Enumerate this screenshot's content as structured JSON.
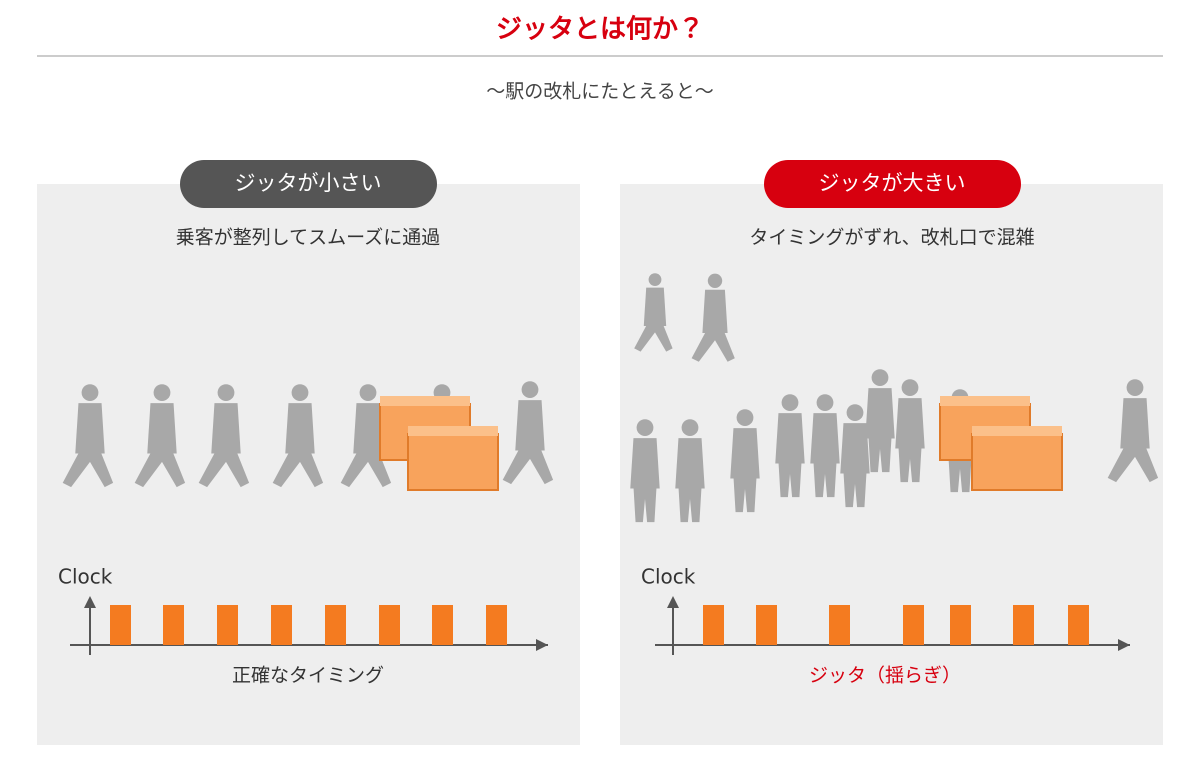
{
  "header": {
    "title": "ジッタとは何か？",
    "subtitle": "〜駅の改札にたとえると〜"
  },
  "panels": [
    {
      "badge": "ジッタが小さい",
      "caption": "乗客が整列してスムーズに通過",
      "axis_label": "Clock",
      "footer": "正確なタイミング"
    },
    {
      "badge": "ジッタが大きい",
      "caption": "タイミングがずれ、改札口で混雑",
      "axis_label": "Clock",
      "footer": "ジッタ（揺らぎ）"
    }
  ]
}
